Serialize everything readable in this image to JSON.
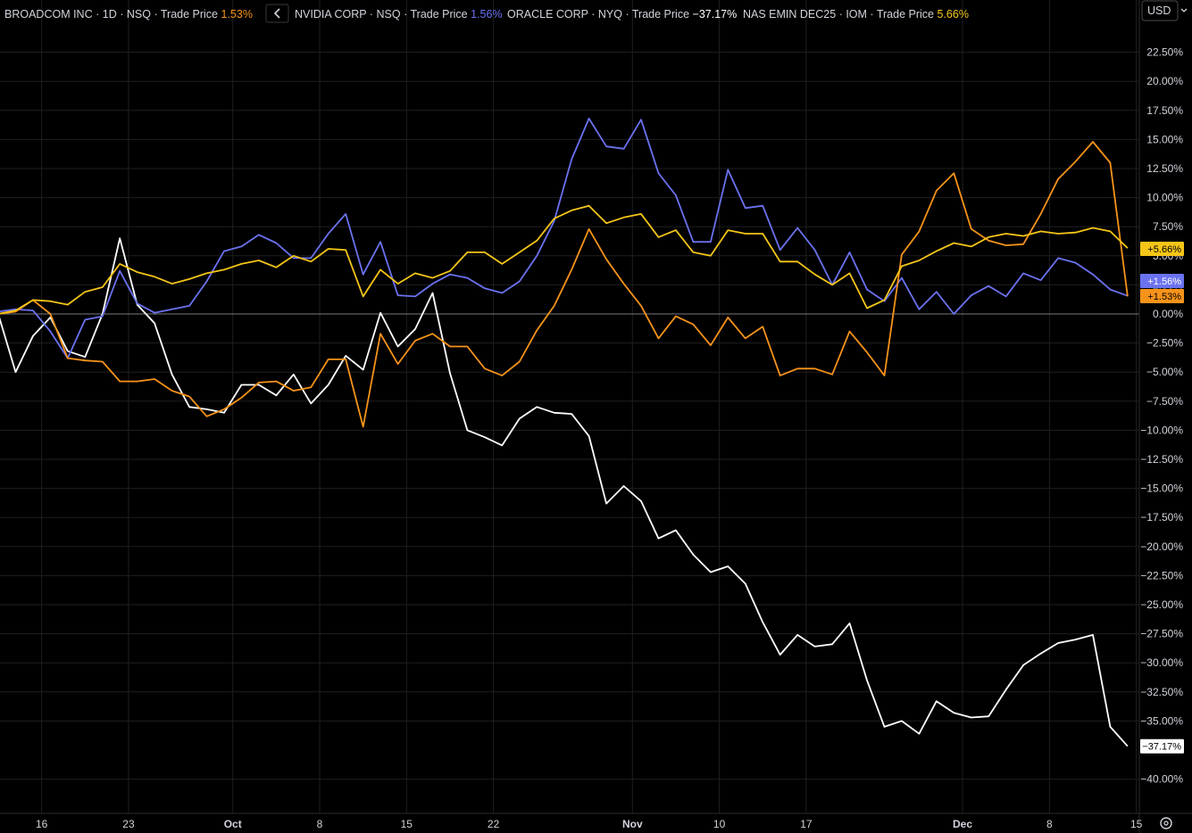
{
  "header": {
    "series": [
      {
        "name": "BROADCOM INC",
        "parts": [
          "1D",
          "NSQ",
          "Trade Price"
        ],
        "value": "1.53%",
        "color": "#f7931a"
      },
      {
        "name": "NVIDIA CORP",
        "parts": [
          "NSQ",
          "Trade Price"
        ],
        "value": "1.56%",
        "color": "#6b72f0"
      },
      {
        "name": "ORACLE CORP",
        "parts": [
          "NYQ",
          "Trade Price"
        ],
        "value": "−37.17%",
        "color": "#ffffff"
      },
      {
        "name": "NAS EMIN DEC25",
        "parts": [
          "IOM",
          "Trade Price"
        ],
        "value": "5.66%",
        "color": "#f5c518"
      }
    ],
    "collapse_icon": "chevron-left-icon",
    "currency_button": "USD"
  },
  "settings_icon": "gear-icon",
  "colors": {
    "background": "#000000",
    "grid": "#1f1f1f",
    "zero_line": "#7a7a7a",
    "text": "#d1d4dc",
    "broadcom": "#f7931a",
    "nvidia": "#6b72f0",
    "oracle": "#ffffff",
    "nas_emin": "#f5c518"
  },
  "chart_data": {
    "type": "line",
    "y_unit": "percent change",
    "ylim": [
      -42,
      24
    ],
    "y_ticks": [
      22.5,
      20,
      17.5,
      15,
      12.5,
      10,
      7.5,
      5,
      2.5,
      0,
      -2.5,
      -5,
      -7.5,
      -10,
      -12.5,
      -15,
      -17.5,
      -20,
      -22.5,
      -25,
      -27.5,
      -30,
      -32.5,
      -35,
      -40
    ],
    "y_tick_labels": [
      "22.50%",
      "20.00%",
      "17.50%",
      "15.00%",
      "12.50%",
      "10.00%",
      "7.50%",
      "5.00%",
      "2.50%",
      "0.00%",
      "−2.50%",
      "−5.00%",
      "−7.50%",
      "−10.00%",
      "−12.50%",
      "−15.00%",
      "−17.50%",
      "−20.00%",
      "−22.50%",
      "−25.00%",
      "−27.50%",
      "−30.00%",
      "−32.50%",
      "−35.00%",
      "−40.00%"
    ],
    "x_ticks": [
      {
        "idx": 2.5,
        "label": "16",
        "bold": false
      },
      {
        "idx": 7.5,
        "label": "23",
        "bold": false
      },
      {
        "idx": 13.5,
        "label": "Oct",
        "bold": true
      },
      {
        "idx": 18.5,
        "label": "8",
        "bold": false
      },
      {
        "idx": 23.5,
        "label": "15",
        "bold": false
      },
      {
        "idx": 28.5,
        "label": "22",
        "bold": false
      },
      {
        "idx": 36.5,
        "label": "Nov",
        "bold": true
      },
      {
        "idx": 41.5,
        "label": "10",
        "bold": false
      },
      {
        "idx": 46.5,
        "label": "17",
        "bold": false
      },
      {
        "idx": 55.5,
        "label": "Dec",
        "bold": true
      },
      {
        "idx": 60.5,
        "label": "8",
        "bold": false
      },
      {
        "idx": 65.5,
        "label": "15",
        "bold": false
      }
    ],
    "series": [
      {
        "name": "BROADCOM INC",
        "color": "#f7931a",
        "last_label": "+1.53%",
        "values": [
          0.0,
          0.2,
          1.2,
          0.0,
          -3.8,
          -4.0,
          -4.1,
          -5.8,
          -5.8,
          -5.6,
          -6.6,
          -7.1,
          -8.8,
          -8.2,
          -7.2,
          -5.9,
          -5.8,
          -6.6,
          -6.3,
          -3.9,
          -3.9,
          -9.7,
          -1.7,
          -4.3,
          -2.3,
          -1.7,
          -2.8,
          -2.8,
          -4.7,
          -5.3,
          -4.1,
          -1.4,
          0.7,
          3.8,
          7.3,
          4.7,
          2.6,
          0.7,
          -2.1,
          -0.2,
          -0.9,
          -2.7,
          -0.3,
          -2.1,
          -1.1,
          -5.3,
          -4.7,
          -4.7,
          -5.2,
          -1.5,
          -3.3,
          -5.3,
          5.1,
          7.1,
          10.6,
          12.1,
          7.3,
          6.3,
          5.9,
          6.0,
          8.6,
          11.6,
          13.1,
          14.8,
          13.0,
          1.5
        ],
        "tag_y": 1.53
      },
      {
        "name": "NVIDIA CORP",
        "color": "#6b72f0",
        "last_label": "+1.56%",
        "values": [
          0.2,
          0.4,
          0.3,
          -1.5,
          -3.8,
          -0.5,
          -0.2,
          3.7,
          0.9,
          0.1,
          0.4,
          0.7,
          2.8,
          5.4,
          5.8,
          6.8,
          6.1,
          4.8,
          4.8,
          6.9,
          8.6,
          3.4,
          6.2,
          1.6,
          1.5,
          2.6,
          3.4,
          3.1,
          2.2,
          1.8,
          2.8,
          5.0,
          8.0,
          13.3,
          16.8,
          14.4,
          14.2,
          16.7,
          12.1,
          10.2,
          6.2,
          6.2,
          12.4,
          9.1,
          9.3,
          5.5,
          7.4,
          5.5,
          2.5,
          5.3,
          2.1,
          1.1,
          3.1,
          0.4,
          1.9,
          0.0,
          1.6,
          2.4,
          1.5,
          3.5,
          2.9,
          4.8,
          4.4,
          3.4,
          2.1,
          1.56
        ],
        "tag_y": 1.56
      },
      {
        "name": "ORACLE CORP",
        "color": "#ffffff",
        "last_label": "−37.17%",
        "values": [
          0.0,
          -5.0,
          -1.9,
          -0.3,
          -3.2,
          -3.7,
          0.0,
          6.5,
          0.8,
          -0.8,
          -5.2,
          -8.0,
          -8.2,
          -8.5,
          -6.1,
          -6.1,
          -7.0,
          -5.2,
          -7.7,
          -6.1,
          -3.6,
          -4.8,
          0.1,
          -2.8,
          -1.3,
          1.8,
          -5.1,
          -10.0,
          -10.6,
          -11.3,
          -9.0,
          -8.0,
          -8.5,
          -8.6,
          -10.5,
          -16.3,
          -14.8,
          -16.1,
          -19.3,
          -18.6,
          -20.7,
          -22.2,
          -21.7,
          -23.2,
          -26.5,
          -29.3,
          -27.6,
          -28.6,
          -28.4,
          -26.6,
          -31.5,
          -35.5,
          -35.0,
          -36.1,
          -33.3,
          -34.3,
          -34.7,
          -34.6,
          -32.3,
          -30.2,
          -29.2,
          -28.3,
          -28.0,
          -27.6,
          -35.5,
          -37.17
        ],
        "tag_y": -37.17
      },
      {
        "name": "NAS EMIN DEC25",
        "color": "#f5c518",
        "last_label": "+5.66%",
        "values": [
          0.0,
          0.3,
          1.2,
          1.1,
          0.8,
          1.9,
          2.3,
          4.3,
          3.6,
          3.2,
          2.6,
          3.0,
          3.5,
          3.8,
          4.3,
          4.6,
          4.0,
          5.0,
          4.5,
          5.6,
          5.5,
          1.5,
          3.8,
          2.6,
          3.5,
          3.1,
          3.7,
          5.3,
          5.3,
          4.3,
          5.3,
          6.3,
          8.2,
          8.9,
          9.3,
          7.8,
          8.3,
          8.6,
          6.6,
          7.2,
          5.3,
          5.0,
          7.2,
          6.9,
          6.9,
          4.5,
          4.5,
          3.4,
          2.5,
          3.5,
          0.5,
          1.2,
          4.1,
          4.6,
          5.4,
          6.1,
          5.8,
          6.6,
          6.9,
          6.7,
          7.1,
          6.9,
          7.0,
          7.4,
          7.1,
          5.66
        ],
        "tag_y": 5.66
      }
    ]
  }
}
